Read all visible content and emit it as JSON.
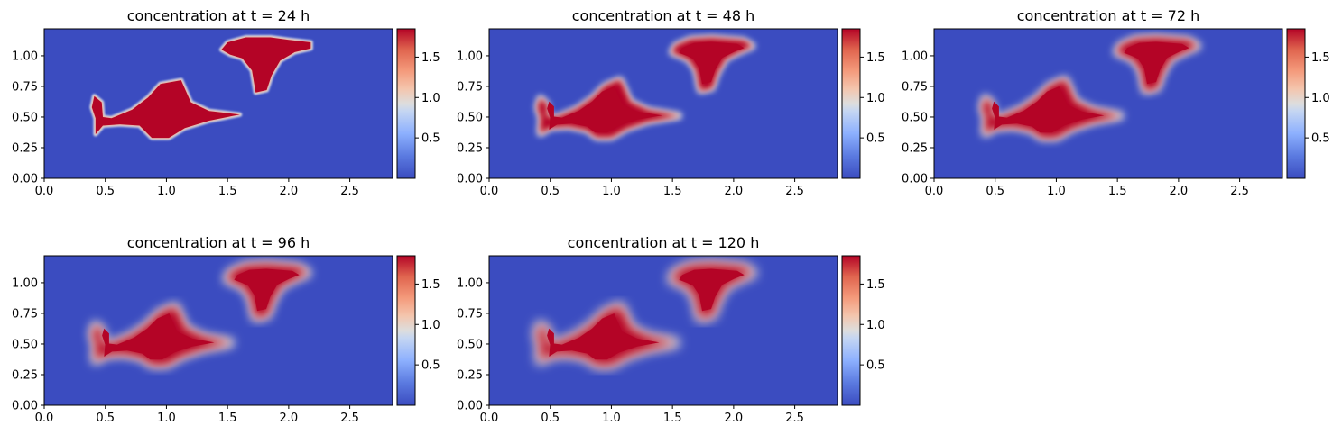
{
  "figure": {
    "background": "#ffffff"
  },
  "colormap": {
    "name": "coolwarm",
    "low": "#3b4cc0",
    "mid": "#dddddd",
    "high": "#b40426",
    "range": [
      0.0,
      1.85
    ]
  },
  "chart_data": [
    {
      "type": "heatmap",
      "title": "concentration at t = 24 h",
      "xlim": [
        0.0,
        2.85
      ],
      "ylim": [
        0.0,
        1.22
      ],
      "xticks": [
        "0.0",
        "0.5",
        "1.0",
        "1.5",
        "2.0",
        "2.5"
      ],
      "yticks": [
        "0.00",
        "0.25",
        "0.50",
        "0.75",
        "1.00"
      ],
      "colorbar_ticks": [
        "0.5",
        "1.0",
        "1.5"
      ],
      "background_value": 0.0,
      "peak_value": 1.8,
      "edge_softness": 0.0,
      "blobs": [
        {
          "name": "left-tail",
          "points": [
            [
              0.42,
              0.36
            ],
            [
              0.48,
              0.43
            ],
            [
              0.62,
              0.44
            ],
            [
              0.78,
              0.43
            ],
            [
              0.88,
              0.33
            ],
            [
              1.02,
              0.33
            ],
            [
              1.15,
              0.41
            ],
            [
              1.35,
              0.47
            ],
            [
              1.6,
              0.52
            ],
            [
              1.35,
              0.55
            ],
            [
              1.2,
              0.62
            ],
            [
              1.12,
              0.8
            ],
            [
              0.95,
              0.77
            ],
            [
              0.85,
              0.66
            ],
            [
              0.72,
              0.56
            ],
            [
              0.55,
              0.49
            ],
            [
              0.48,
              0.5
            ],
            [
              0.47,
              0.62
            ],
            [
              0.41,
              0.67
            ],
            [
              0.39,
              0.58
            ],
            [
              0.42,
              0.49
            ]
          ]
        },
        {
          "name": "right-mushroom",
          "points": [
            [
              1.73,
              0.7
            ],
            [
              1.82,
              0.72
            ],
            [
              1.86,
              0.84
            ],
            [
              1.93,
              0.96
            ],
            [
              2.05,
              1.03
            ],
            [
              2.18,
              1.06
            ],
            [
              2.18,
              1.11
            ],
            [
              2.0,
              1.13
            ],
            [
              1.85,
              1.15
            ],
            [
              1.65,
              1.15
            ],
            [
              1.5,
              1.11
            ],
            [
              1.45,
              1.05
            ],
            [
              1.52,
              1.01
            ],
            [
              1.62,
              0.98
            ],
            [
              1.7,
              0.88
            ]
          ]
        }
      ]
    },
    {
      "type": "heatmap",
      "title": "concentration at t = 48 h",
      "xlim": [
        0.0,
        2.85
      ],
      "ylim": [
        0.0,
        1.22
      ],
      "xticks": [
        "0.0",
        "0.5",
        "1.0",
        "1.5",
        "2.0",
        "2.5"
      ],
      "yticks": [
        "0.00",
        "0.25",
        "0.50",
        "0.75",
        "1.00"
      ],
      "colorbar_ticks": [
        "0.5",
        "1.0",
        "1.5"
      ],
      "background_value": 0.0,
      "peak_value": 1.8,
      "edge_softness": 0.5,
      "blobs": [
        {
          "name": "left-tail",
          "points": [
            [
              0.42,
              0.37
            ],
            [
              0.5,
              0.42
            ],
            [
              0.65,
              0.43
            ],
            [
              0.8,
              0.4
            ],
            [
              0.88,
              0.34
            ],
            [
              1.0,
              0.34
            ],
            [
              1.12,
              0.41
            ],
            [
              1.3,
              0.47
            ],
            [
              1.55,
              0.51
            ],
            [
              1.3,
              0.55
            ],
            [
              1.15,
              0.62
            ],
            [
              1.07,
              0.8
            ],
            [
              0.95,
              0.75
            ],
            [
              0.85,
              0.65
            ],
            [
              0.72,
              0.56
            ],
            [
              0.55,
              0.49
            ],
            [
              0.47,
              0.5
            ],
            [
              0.47,
              0.6
            ],
            [
              0.42,
              0.65
            ],
            [
              0.4,
              0.58
            ],
            [
              0.43,
              0.49
            ]
          ]
        },
        {
          "name": "right-mushroom",
          "points": [
            [
              1.73,
              0.72
            ],
            [
              1.82,
              0.74
            ],
            [
              1.86,
              0.86
            ],
            [
              1.93,
              0.98
            ],
            [
              2.05,
              1.04
            ],
            [
              2.15,
              1.08
            ],
            [
              2.08,
              1.12
            ],
            [
              1.95,
              1.13
            ],
            [
              1.82,
              1.14
            ],
            [
              1.65,
              1.13
            ],
            [
              1.53,
              1.08
            ],
            [
              1.5,
              1.03
            ],
            [
              1.58,
              1.0
            ],
            [
              1.64,
              0.97
            ],
            [
              1.7,
              0.88
            ]
          ]
        }
      ]
    },
    {
      "type": "heatmap",
      "title": "concentration at t = 72 h",
      "xlim": [
        0.0,
        2.85
      ],
      "ylim": [
        0.0,
        1.22
      ],
      "xticks": [
        "0.0",
        "0.5",
        "1.0",
        "1.5",
        "2.0",
        "2.5"
      ],
      "yticks": [
        "0.00",
        "0.25",
        "0.50",
        "0.75",
        "1.00"
      ],
      "colorbar_ticks": [
        "0.5",
        "1.0",
        "1.5"
      ],
      "background_value": 0.0,
      "peak_value": 1.8,
      "edge_softness": 0.7,
      "blobs": [
        {
          "name": "left-tail",
          "points": [
            [
              0.42,
              0.37
            ],
            [
              0.5,
              0.42
            ],
            [
              0.65,
              0.43
            ],
            [
              0.8,
              0.4
            ],
            [
              0.88,
              0.34
            ],
            [
              1.0,
              0.34
            ],
            [
              1.12,
              0.41
            ],
            [
              1.3,
              0.47
            ],
            [
              1.52,
              0.51
            ],
            [
              1.3,
              0.55
            ],
            [
              1.15,
              0.62
            ],
            [
              1.07,
              0.8
            ],
            [
              0.95,
              0.75
            ],
            [
              0.85,
              0.65
            ],
            [
              0.72,
              0.56
            ],
            [
              0.55,
              0.49
            ],
            [
              0.47,
              0.5
            ],
            [
              0.47,
              0.6
            ],
            [
              0.42,
              0.65
            ],
            [
              0.4,
              0.58
            ],
            [
              0.43,
              0.49
            ]
          ]
        },
        {
          "name": "right-mushroom",
          "points": [
            [
              1.73,
              0.72
            ],
            [
              1.82,
              0.74
            ],
            [
              1.86,
              0.86
            ],
            [
              1.93,
              0.98
            ],
            [
              2.05,
              1.04
            ],
            [
              2.15,
              1.08
            ],
            [
              2.08,
              1.12
            ],
            [
              1.95,
              1.13
            ],
            [
              1.82,
              1.14
            ],
            [
              1.65,
              1.13
            ],
            [
              1.53,
              1.08
            ],
            [
              1.5,
              1.03
            ],
            [
              1.58,
              1.0
            ],
            [
              1.64,
              0.97
            ],
            [
              1.7,
              0.88
            ]
          ]
        }
      ]
    },
    {
      "type": "heatmap",
      "title": "concentration at t = 96 h",
      "xlim": [
        0.0,
        2.85
      ],
      "ylim": [
        0.0,
        1.22
      ],
      "xticks": [
        "0.0",
        "0.5",
        "1.0",
        "1.5",
        "2.0",
        "2.5"
      ],
      "yticks": [
        "0.00",
        "0.25",
        "0.50",
        "0.75",
        "1.00"
      ],
      "colorbar_ticks": [
        "0.5",
        "1.0",
        "1.5"
      ],
      "background_value": 0.0,
      "peak_value": 1.8,
      "edge_softness": 0.85,
      "blobs": [
        {
          "name": "left-tail",
          "points": [
            [
              0.42,
              0.37
            ],
            [
              0.5,
              0.42
            ],
            [
              0.65,
              0.43
            ],
            [
              0.8,
              0.4
            ],
            [
              0.88,
              0.34
            ],
            [
              1.0,
              0.34
            ],
            [
              1.12,
              0.41
            ],
            [
              1.3,
              0.47
            ],
            [
              1.52,
              0.51
            ],
            [
              1.3,
              0.55
            ],
            [
              1.15,
              0.62
            ],
            [
              1.07,
              0.8
            ],
            [
              0.95,
              0.75
            ],
            [
              0.85,
              0.65
            ],
            [
              0.72,
              0.56
            ],
            [
              0.55,
              0.49
            ],
            [
              0.47,
              0.5
            ],
            [
              0.47,
              0.6
            ],
            [
              0.42,
              0.65
            ],
            [
              0.4,
              0.58
            ],
            [
              0.43,
              0.49
            ]
          ]
        },
        {
          "name": "right-mushroom",
          "points": [
            [
              1.73,
              0.72
            ],
            [
              1.82,
              0.74
            ],
            [
              1.86,
              0.86
            ],
            [
              1.93,
              0.98
            ],
            [
              2.05,
              1.04
            ],
            [
              2.15,
              1.08
            ],
            [
              2.08,
              1.12
            ],
            [
              1.95,
              1.13
            ],
            [
              1.82,
              1.14
            ],
            [
              1.65,
              1.13
            ],
            [
              1.53,
              1.08
            ],
            [
              1.5,
              1.03
            ],
            [
              1.58,
              1.0
            ],
            [
              1.64,
              0.97
            ],
            [
              1.7,
              0.88
            ]
          ]
        }
      ]
    },
    {
      "type": "heatmap",
      "title": "concentration at t = 120 h",
      "xlim": [
        0.0,
        2.85
      ],
      "ylim": [
        0.0,
        1.22
      ],
      "xticks": [
        "0.0",
        "0.5",
        "1.0",
        "1.5",
        "2.0",
        "2.5"
      ],
      "yticks": [
        "0.00",
        "0.25",
        "0.50",
        "0.75",
        "1.00"
      ],
      "colorbar_ticks": [
        "0.5",
        "1.0",
        "1.5"
      ],
      "background_value": 0.0,
      "peak_value": 1.8,
      "edge_softness": 1.0,
      "blobs": [
        {
          "name": "left-tail",
          "points": [
            [
              0.42,
              0.37
            ],
            [
              0.5,
              0.42
            ],
            [
              0.65,
              0.43
            ],
            [
              0.8,
              0.4
            ],
            [
              0.88,
              0.34
            ],
            [
              1.0,
              0.34
            ],
            [
              1.12,
              0.41
            ],
            [
              1.3,
              0.47
            ],
            [
              1.52,
              0.51
            ],
            [
              1.3,
              0.55
            ],
            [
              1.15,
              0.62
            ],
            [
              1.07,
              0.8
            ],
            [
              0.95,
              0.75
            ],
            [
              0.85,
              0.65
            ],
            [
              0.72,
              0.56
            ],
            [
              0.55,
              0.49
            ],
            [
              0.47,
              0.5
            ],
            [
              0.47,
              0.6
            ],
            [
              0.42,
              0.65
            ],
            [
              0.4,
              0.58
            ],
            [
              0.43,
              0.49
            ]
          ]
        },
        {
          "name": "right-mushroom",
          "points": [
            [
              1.73,
              0.72
            ],
            [
              1.82,
              0.74
            ],
            [
              1.86,
              0.86
            ],
            [
              1.93,
              0.98
            ],
            [
              2.05,
              1.04
            ],
            [
              2.15,
              1.08
            ],
            [
              2.08,
              1.12
            ],
            [
              1.95,
              1.13
            ],
            [
              1.82,
              1.14
            ],
            [
              1.65,
              1.13
            ],
            [
              1.53,
              1.08
            ],
            [
              1.5,
              1.03
            ],
            [
              1.58,
              1.0
            ],
            [
              1.64,
              0.97
            ],
            [
              1.7,
              0.88
            ]
          ]
        }
      ]
    }
  ]
}
